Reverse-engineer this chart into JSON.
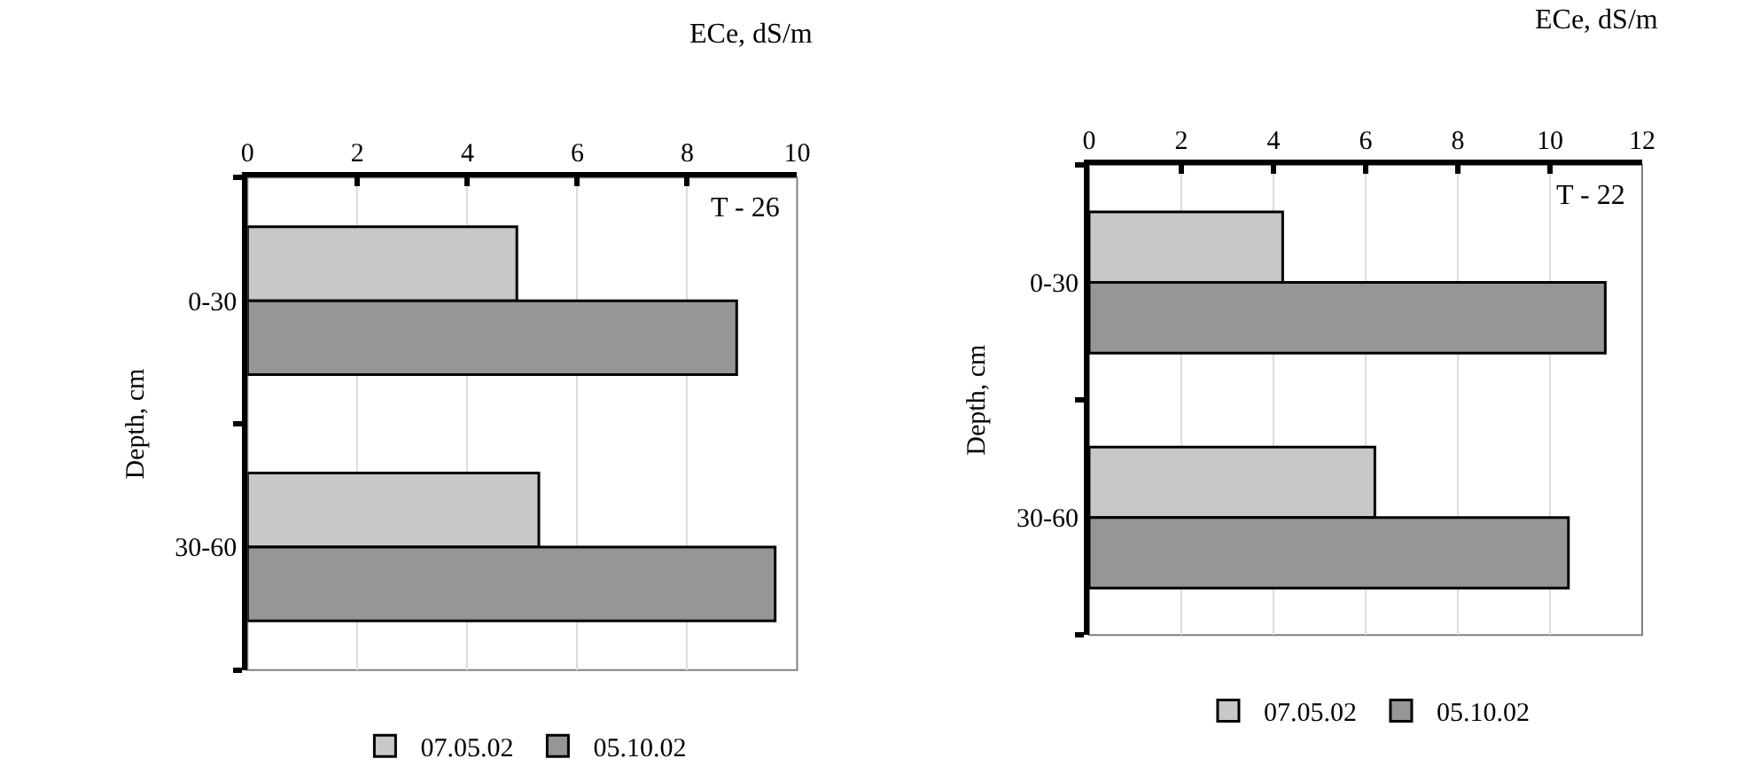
{
  "chart_data": [
    {
      "type": "bar",
      "orientation": "horizontal",
      "categories": [
        "0-30",
        "30-60"
      ],
      "series": [
        {
          "name": "07.05.02",
          "color": "#c8c8c8",
          "values": [
            4.9,
            5.3
          ]
        },
        {
          "name": "05.10.02",
          "color": "#969696",
          "values": [
            8.9,
            9.6
          ]
        }
      ],
      "xlim": [
        0,
        10
      ],
      "xticks": [
        0,
        2,
        4,
        6,
        8,
        10
      ],
      "xlabel": "ECe, dS/m",
      "ylabel": "Depth, cm",
      "annotations": [
        "T - 26"
      ],
      "grid": "x",
      "legend": "bottom"
    },
    {
      "type": "bar",
      "orientation": "horizontal",
      "categories": [
        "0-30",
        "30-60"
      ],
      "series": [
        {
          "name": "07.05.02",
          "color": "#c8c8c8",
          "values": [
            4.2,
            6.2
          ]
        },
        {
          "name": "05.10.02",
          "color": "#969696",
          "values": [
            11.2,
            10.4
          ]
        }
      ],
      "xlim": [
        0,
        12
      ],
      "xticks": [
        0,
        2,
        4,
        6,
        8,
        10,
        12
      ],
      "xlabel": "ECe, dS/m",
      "ylabel": "Depth, cm",
      "annotations": [
        "T - 22"
      ],
      "grid": "x",
      "legend": "bottom"
    }
  ]
}
